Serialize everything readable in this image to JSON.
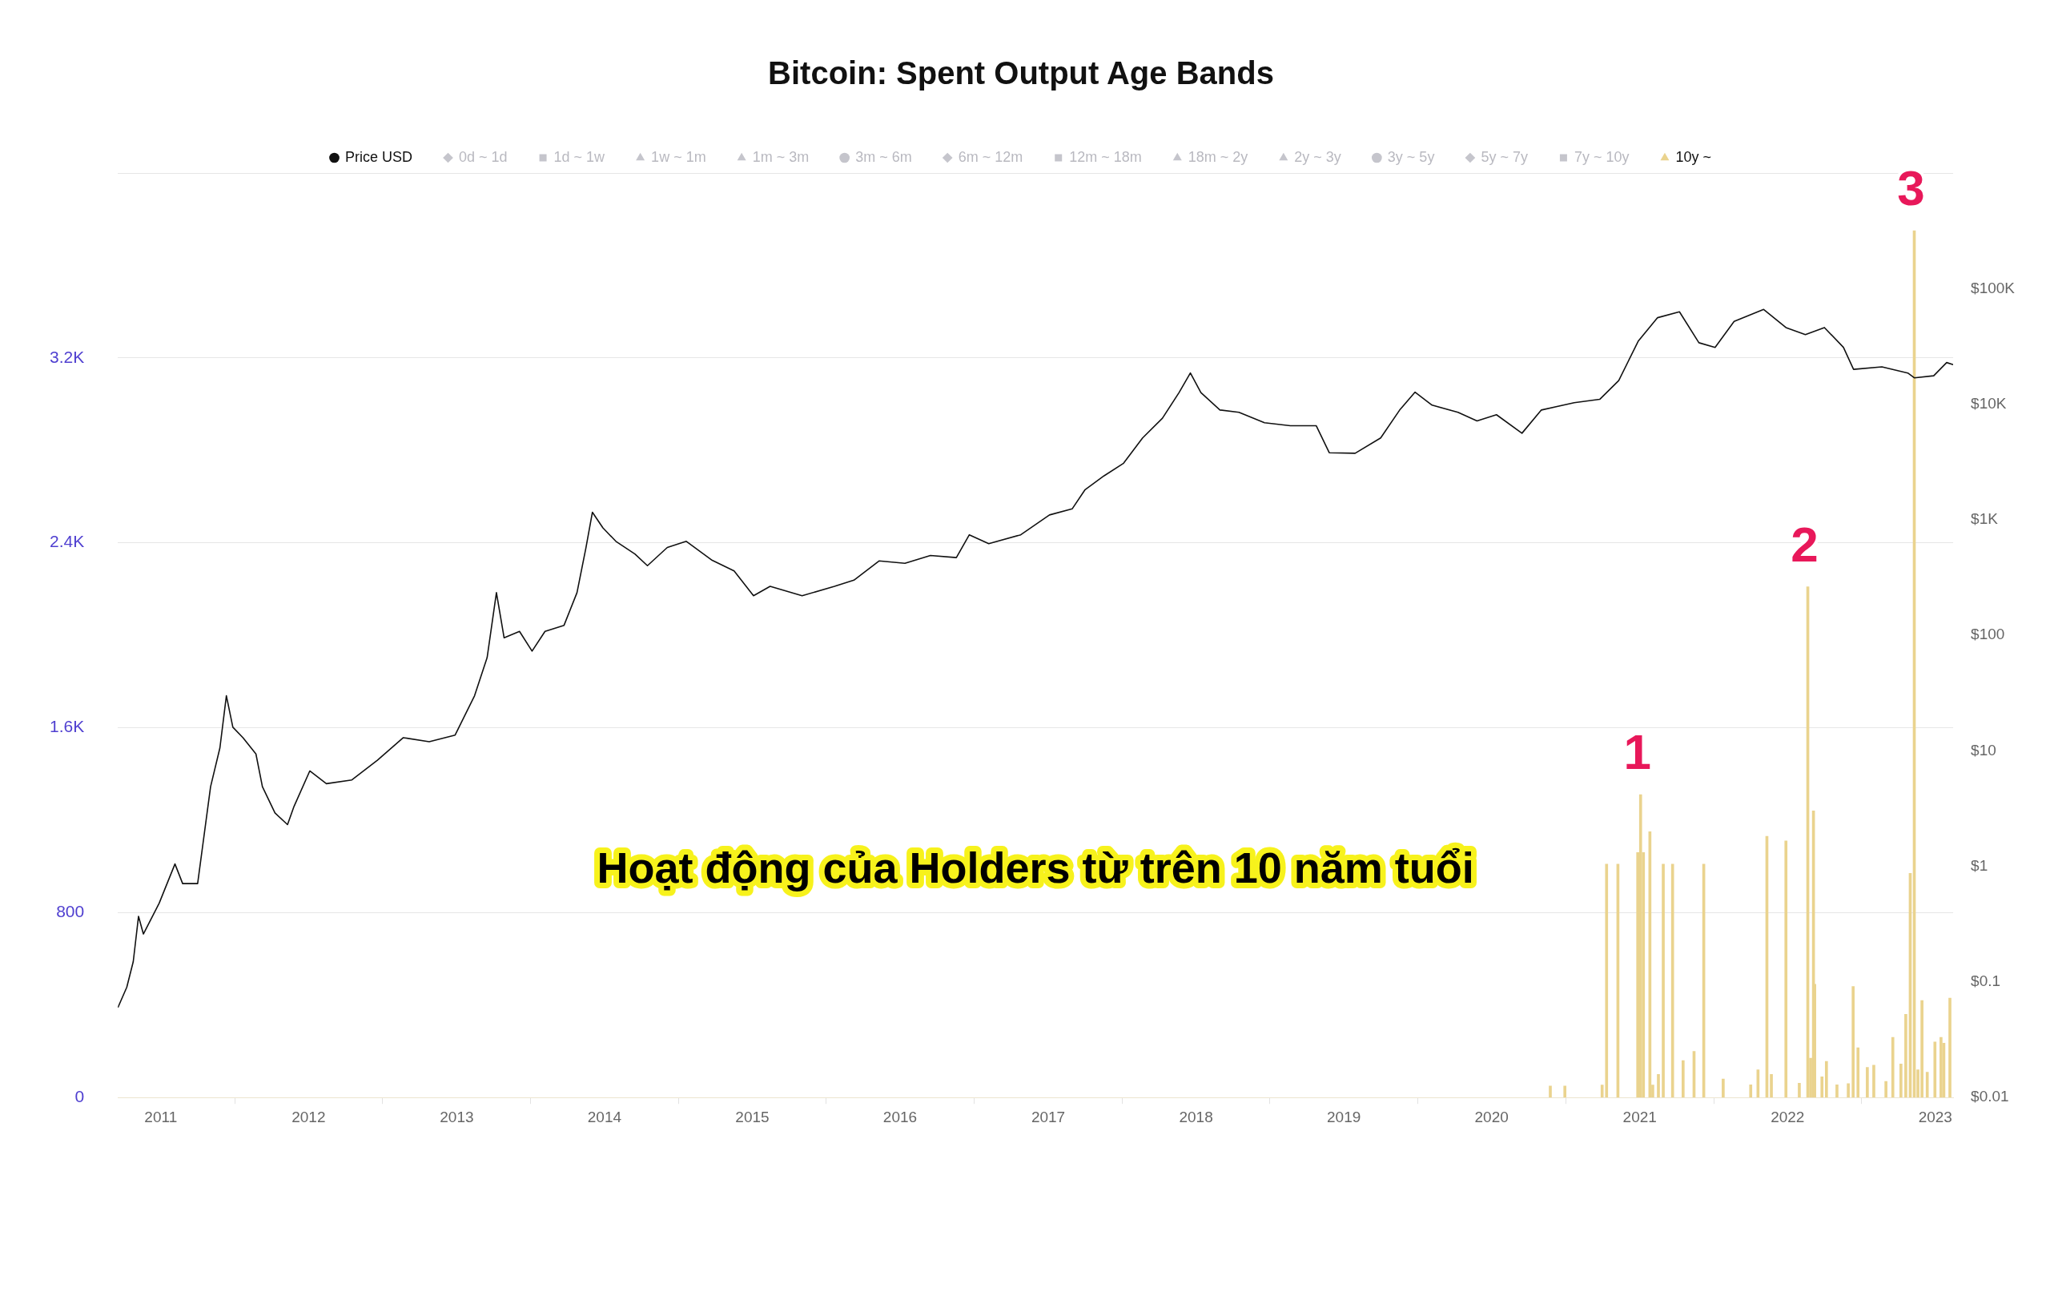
{
  "chart_data": {
    "type": "line",
    "title": "Bitcoin: Spent Output Age Bands",
    "legend": "top",
    "grid": "y",
    "log": "y2",
    "xlim": [
      "2010-09-17",
      "2023-02-14"
    ],
    "xticks": [
      "2011",
      "2012",
      "2013",
      "2014",
      "2015",
      "2016",
      "2017",
      "2018",
      "2019",
      "2020",
      "2021",
      "2022",
      "2023"
    ],
    "ylim": [
      0,
      4000
    ],
    "yticks": [
      0,
      800,
      {
        "value": 1600,
        "label": "1.6K"
      },
      {
        "value": 2400,
        "label": "2.4K"
      },
      {
        "value": 3200,
        "label": "3.2K"
      },
      {
        "value": 4000,
        "label": null
      }
    ],
    "y2lim": [
      0.01,
      1000000
    ],
    "y2ticks": [
      {
        "value": 0.01,
        "label": "$0.01"
      },
      {
        "value": 0.1,
        "label": "$0.1"
      },
      {
        "value": 1,
        "label": "$1"
      },
      {
        "value": 10,
        "label": "$10"
      },
      {
        "value": 100,
        "label": "$100"
      },
      {
        "value": 1000,
        "label": "$1K"
      },
      {
        "value": 10000,
        "label": "$10K"
      },
      {
        "value": 100000,
        "label": "$100K"
      },
      {
        "value": 1000000,
        "label": null
      }
    ],
    "series": [
      {
        "name": "Price USD",
        "axis": "y2",
        "color": "#111111",
        "x": [
          "2010-09-17",
          "2010-10-09",
          "2010-10-25",
          "2010-11-07",
          "2010-11-19",
          "2010-12-28",
          "2011-02-05",
          "2011-02-24",
          "2011-04-02",
          "2011-05-04",
          "2011-05-27",
          "2011-06-12",
          "2011-06-28",
          "2011-07-23",
          "2011-08-24",
          "2011-09-09",
          "2011-10-10",
          "2011-11-10",
          "2011-11-26",
          "2012-01-04",
          "2012-02-14",
          "2012-04-17",
          "2012-06-19",
          "2012-08-22",
          "2012-10-25",
          "2012-12-28",
          "2013-02-14",
          "2013-03-17",
          "2013-04-09",
          "2013-04-28",
          "2013-06-05",
          "2013-07-06",
          "2013-08-07",
          "2013-09-23",
          "2013-10-25",
          "2013-11-16",
          "2013-12-02",
          "2013-12-28",
          "2014-01-29",
          "2014-03-17",
          "2014-04-17",
          "2014-06-05",
          "2014-07-22",
          "2014-09-24",
          "2014-11-17",
          "2015-01-04",
          "2015-02-14",
          "2015-05-04",
          "2015-07-23",
          "2015-09-09",
          "2015-11-10",
          "2016-01-13",
          "2016-03-16",
          "2016-05-19",
          "2016-06-20",
          "2016-08-07",
          "2016-10-25",
          "2017-01-04",
          "2017-03-01",
          "2017-04-02",
          "2017-05-19",
          "2017-07-06",
          "2017-08-22",
          "2017-10-10",
          "2017-11-20",
          "2017-12-18",
          "2018-01-13",
          "2018-03-01",
          "2018-04-17",
          "2018-06-19",
          "2018-08-22",
          "2018-10-25",
          "2018-11-26",
          "2019-01-29",
          "2019-04-02",
          "2019-05-19",
          "2019-06-26",
          "2019-08-07",
          "2019-10-10",
          "2019-11-26",
          "2020-01-13",
          "2020-03-16",
          "2020-05-03",
          "2020-07-23",
          "2020-09-24",
          "2020-11-10",
          "2020-12-28",
          "2021-02-14",
          "2021-04-09",
          "2021-05-27",
          "2021-07-06",
          "2021-08-22",
          "2021-11-03",
          "2021-12-28",
          "2022-02-14",
          "2022-04-02",
          "2022-05-19",
          "2022-06-13",
          "2022-08-22",
          "2022-10-25",
          "2022-11-10",
          "2022-12-28",
          "2023-01-29",
          "2023-02-14"
        ],
        "values": [
          0.06,
          0.09,
          0.15,
          0.37,
          0.26,
          0.48,
          1.05,
          0.71,
          0.71,
          4.9,
          10.6,
          30,
          16,
          13,
          9.4,
          4.9,
          2.9,
          2.3,
          3.3,
          6.7,
          5.2,
          5.6,
          8.3,
          13,
          12,
          13.7,
          30,
          64,
          234,
          95,
          108,
          73,
          108,
          122,
          234,
          570,
          1160,
          850,
          650,
          505,
          400,
          575,
          650,
          445,
          360,
          220,
          265,
          220,
          265,
          300,
          440,
          420,
          490,
          470,
          740,
          620,
          740,
          1100,
          1240,
          1820,
          2400,
          3080,
          5100,
          7550,
          12600,
          18600,
          12600,
          8900,
          8500,
          6900,
          6500,
          6500,
          3800,
          3760,
          5100,
          8900,
          12700,
          9800,
          8500,
          7160,
          8100,
          5600,
          8900,
          10300,
          11000,
          16000,
          35000,
          56000,
          63000,
          34000,
          31000,
          52000,
          66000,
          46000,
          40000,
          46000,
          31000,
          20000,
          21000,
          18600,
          16900,
          17600,
          22900,
          22000
        ]
      },
      {
        "name": "0d ~ 1d",
        "color": "#c5c5cc",
        "marker": "diamond"
      },
      {
        "name": "1d ~ 1w",
        "color": "#c5c5cc",
        "marker": "square"
      },
      {
        "name": "1w ~ 1m",
        "color": "#c5c5cc",
        "marker": "triangle"
      },
      {
        "name": "1m ~ 3m",
        "color": "#c5c5cc",
        "marker": "triangle"
      },
      {
        "name": "3m ~ 6m",
        "color": "#c5c5cc",
        "marker": "circle"
      },
      {
        "name": "6m ~ 12m",
        "color": "#c5c5cc",
        "marker": "diamond"
      },
      {
        "name": "12m ~ 18m",
        "color": "#c5c5cc",
        "marker": "square"
      },
      {
        "name": "18m ~ 2y",
        "color": "#c5c5cc",
        "marker": "triangle"
      },
      {
        "name": "2y ~ 3y",
        "color": "#c5c5cc",
        "marker": "triangle"
      },
      {
        "name": "3y ~ 5y",
        "color": "#c5c5cc",
        "marker": "circle"
      },
      {
        "name": "5y ~ 7y",
        "color": "#c5c5cc",
        "marker": "diamond"
      },
      {
        "name": "7y ~ 10y",
        "color": "#c5c5cc",
        "marker": "square"
      },
      {
        "name": "10y ~",
        "type": "bar",
        "color": "#ead38e",
        "x": [
          "2020-05-25",
          "2020-06-30",
          "2020-09-30",
          "2020-10-11",
          "2020-11-08",
          "2020-12-27",
          "2021-01-03",
          "2021-01-10",
          "2021-01-26",
          "2021-02-02",
          "2021-02-16",
          "2021-02-28",
          "2021-03-23",
          "2021-04-18",
          "2021-05-15",
          "2021-06-08",
          "2021-07-26",
          "2021-10-02",
          "2021-10-20",
          "2021-11-11",
          "2021-11-22",
          "2021-12-28",
          "2022-01-30",
          "2022-02-20",
          "2022-02-27",
          "2022-03-06",
          "2022-03-09",
          "2022-03-27",
          "2022-04-07",
          "2022-05-03",
          "2022-05-31",
          "2022-06-12",
          "2022-06-24",
          "2022-07-17",
          "2022-08-02",
          "2022-09-01",
          "2022-09-18",
          "2022-10-08",
          "2022-10-20",
          "2022-10-31",
          "2022-11-10",
          "2022-11-19",
          "2022-11-29",
          "2022-12-12",
          "2022-12-31",
          "2023-01-15",
          "2023-01-22",
          "2023-02-06"
        ],
        "values": [
          50,
          50,
          54,
          1010,
          1010,
          1060,
          1310,
          1060,
          1150,
          54,
          100,
          1010,
          1010,
          160,
          200,
          1010,
          80,
          55,
          120,
          1130,
          100,
          1110,
          62,
          2210,
          170,
          1240,
          490,
          90,
          156,
          55,
          60,
          480,
          215,
          130,
          140,
          70,
          260,
          145,
          360,
          970,
          3750,
          120,
          420,
          110,
          240,
          260,
          235,
          430
        ]
      }
    ],
    "annotations": [
      {
        "text": "1",
        "x": "2021-01-03",
        "y": 1310
      },
      {
        "text": "2",
        "x": "2022-02-20",
        "y": 2210
      },
      {
        "text": "3",
        "x": "2022-11-10",
        "y": 3750
      },
      "Hoạt động của Holders từ trên 10 năm tuổi"
    ]
  }
}
